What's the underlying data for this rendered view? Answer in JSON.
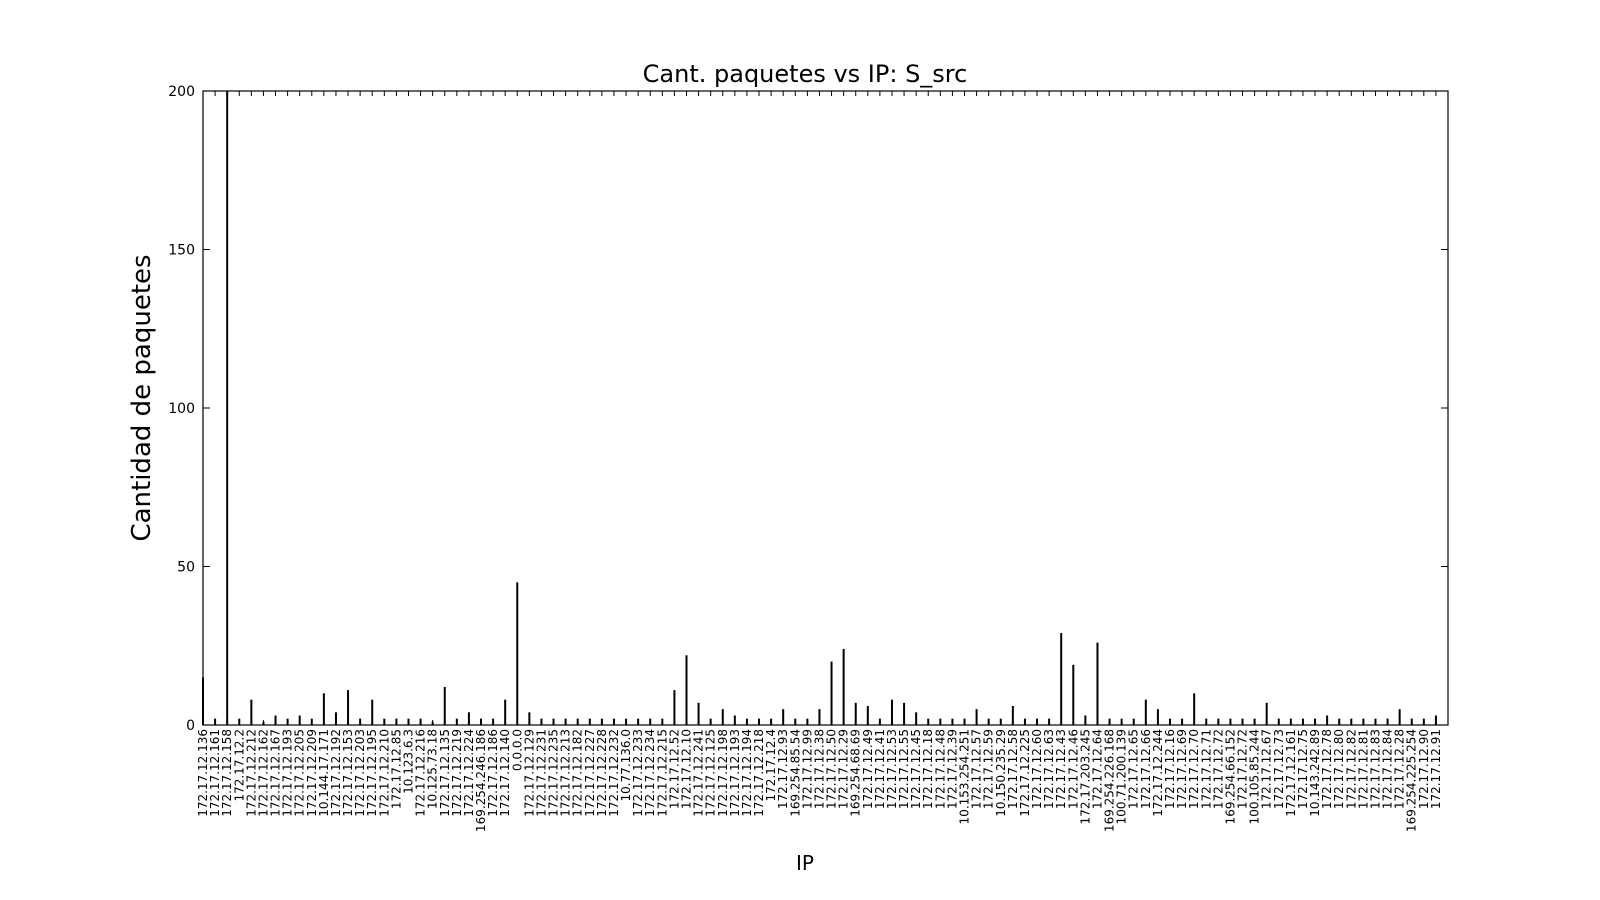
{
  "chart_data": {
    "type": "bar",
    "title": "Cant. paquetes vs IP: S_src",
    "xlabel": "IP",
    "ylabel": "Cantidad de paquetes",
    "ylim": [
      0,
      200
    ],
    "yticks": [
      0,
      50,
      100,
      150,
      200
    ],
    "grid": false,
    "categories": [
      "172.17.12.136",
      "172.17.12.161",
      "172.17.12.158",
      "172.17.12.2",
      "172.17.12.212",
      "172.17.12.162",
      "172.17.12.167",
      "172.17.12.193",
      "172.17.12.205",
      "172.17.12.209",
      "10.144.17.171",
      "172.17.12.192",
      "172.17.12.153",
      "172.17.12.203",
      "172.17.12.195",
      "172.17.12.210",
      "172.17.12.85",
      "10.123.6.3",
      "172.17.12.216",
      "10.125.73.18",
      "172.17.12.135",
      "172.17.12.219",
      "172.17.12.224",
      "169.254.246.186",
      "172.17.12.186",
      "172.17.12.140",
      "0.0.0.0",
      "172.17.12.129",
      "172.17.12.231",
      "172.17.12.235",
      "172.17.12.213",
      "172.17.12.182",
      "172.17.12.227",
      "172.17.12.228",
      "172.17.12.232",
      "10.77.136.0",
      "172.17.12.233",
      "172.17.12.234",
      "172.17.12.215",
      "172.17.12.52",
      "172.17.12.10",
      "172.17.12.241",
      "172.17.12.125",
      "172.17.12.198",
      "172.17.12.193",
      "172.17.12.194",
      "172.17.12.218",
      "172.17.12.4",
      "172.17.12.93",
      "169.254.85.54",
      "172.17.12.99",
      "172.17.12.38",
      "172.17.12.50",
      "172.17.12.29",
      "169.254.68.69",
      "172.17.12.49",
      "172.17.12.41",
      "172.17.12.53",
      "172.17.12.55",
      "172.17.12.45",
      "172.17.12.18",
      "172.17.12.48",
      "172.17.12.39",
      "10.153.254.251",
      "172.17.12.57",
      "172.17.12.59",
      "10.150.235.29",
      "172.17.12.58",
      "172.17.12.225",
      "172.17.12.60",
      "172.17.12.63",
      "172.17.12.43",
      "172.17.12.46",
      "172.17.203.245",
      "172.17.12.64",
      "169.254.226.168",
      "100.71.200.139",
      "172.17.12.65",
      "172.17.12.66",
      "172.17.12.244",
      "172.17.12.16",
      "172.17.12.69",
      "172.17.12.70",
      "172.17.12.71",
      "172.17.12.72",
      "169.254.66.152",
      "172.17.12.72",
      "100.105.85.244",
      "172.17.12.67",
      "172.17.12.73",
      "172.17.12.161",
      "172.17.12.75",
      "10.143.242.89",
      "172.17.12.78",
      "172.17.12.80",
      "172.17.12.82",
      "172.17.12.81",
      "172.17.12.83",
      "172.17.12.84",
      "172.17.12.28",
      "169.254.225.254",
      "172.17.12.90",
      "172.17.12.91"
    ],
    "values": [
      15,
      2,
      200,
      2,
      8,
      1,
      3,
      2,
      3,
      2,
      10,
      4,
      11,
      2,
      8,
      2,
      2,
      2,
      2,
      1,
      12,
      2,
      4,
      2,
      2,
      8,
      45,
      4,
      2,
      2,
      2,
      2,
      2,
      2,
      2,
      2,
      2,
      2,
      2,
      11,
      22,
      7,
      2,
      5,
      3,
      2,
      2,
      2,
      5,
      2,
      2,
      5,
      20,
      24,
      7,
      6,
      2,
      8,
      7,
      4,
      2,
      2,
      2,
      2,
      5,
      2,
      2,
      6,
      2,
      2,
      2,
      29,
      19,
      3,
      26,
      2,
      2,
      2,
      8,
      5,
      2,
      2,
      10,
      2,
      2,
      2,
      2,
      2,
      7,
      2,
      2,
      2,
      2,
      3,
      2,
      2,
      2,
      2,
      2,
      5,
      2,
      2,
      3
    ]
  }
}
